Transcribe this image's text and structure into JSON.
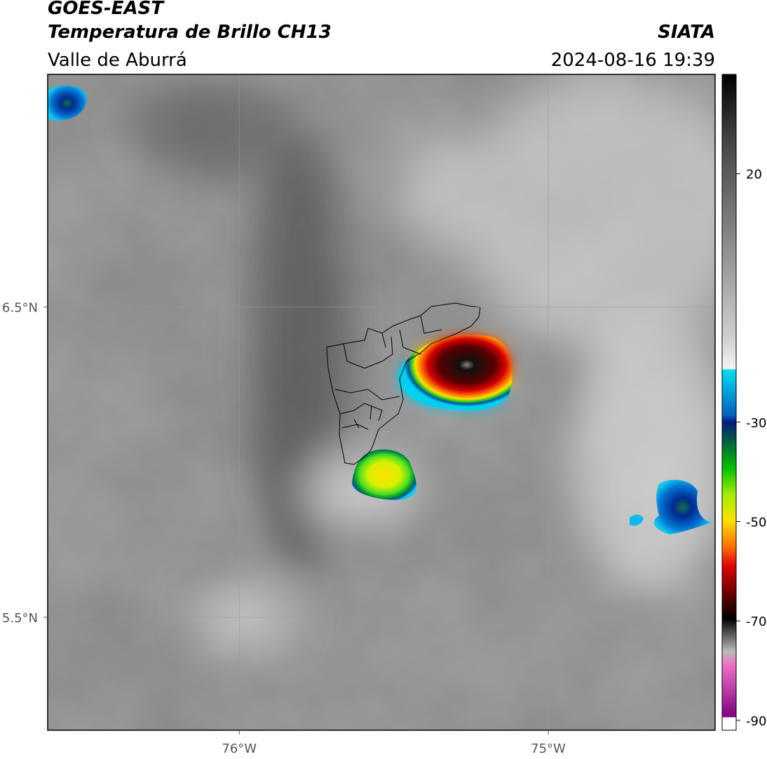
{
  "header": {
    "title": "GOES-EAST",
    "subtitle": "Temperatura de Brillo CH13",
    "region": "Valle de Aburrá",
    "source": "SIATA",
    "datetime": "2024-08-16 19:39"
  },
  "map": {
    "xlim": [
      -76.62,
      -74.46
    ],
    "ylim": [
      5.136,
      7.25
    ],
    "xticks": [
      {
        "value": -76,
        "label": "76°W"
      },
      {
        "value": -75,
        "label": "75°W"
      }
    ],
    "yticks": [
      {
        "value": 6.5,
        "label": "6.5°N"
      },
      {
        "value": 5.5,
        "label": "5.5°N"
      }
    ],
    "grid": true
  },
  "colorbar": {
    "ylim": [
      -92,
      40
    ],
    "yticks": [
      20,
      -30,
      -50,
      -70,
      -90
    ]
  }
}
